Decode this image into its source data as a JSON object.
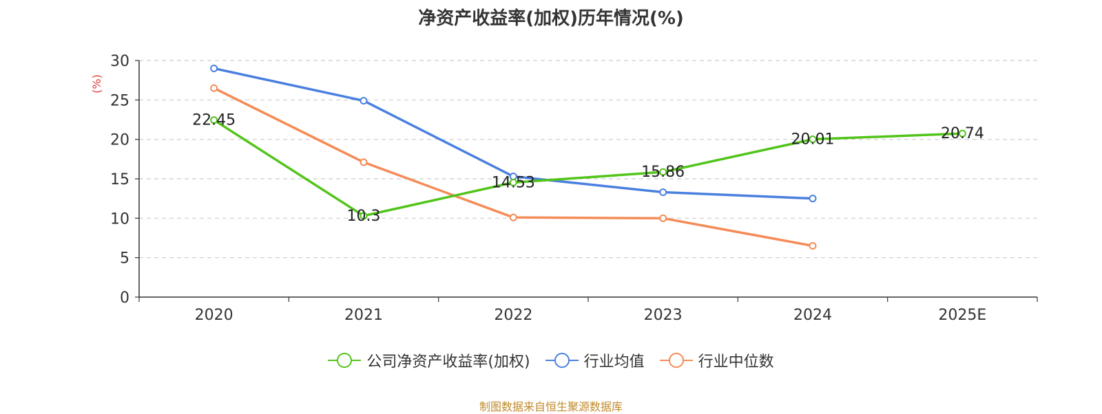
{
  "title": "净资产收益率(加权)历年情况(%)",
  "source_note": "制图数据来自恒生聚源数据库",
  "source_color": "#c08a2a",
  "chart_data": {
    "type": "line",
    "title": "净资产收益率(加权)历年情况(%)",
    "ylabel": "(%)",
    "ylabel_color": "#e53935",
    "ylim": [
      0,
      30
    ],
    "yticks": [
      0,
      5,
      10,
      15,
      20,
      25,
      30
    ],
    "grid": true,
    "legend_position": "bottom",
    "categories": [
      "2020",
      "2021",
      "2022",
      "2023",
      "2024",
      "2025E"
    ],
    "series": [
      {
        "name": "公司净资产收益率(加权)",
        "color": "#52c41a",
        "values": [
          22.45,
          10.3,
          14.53,
          15.86,
          20.01,
          20.74
        ],
        "labels": [
          "22.45",
          "10.3",
          "14.53",
          "15.86",
          "20.01",
          "20.74"
        ]
      },
      {
        "name": "行业均值",
        "color": "#4a7fe0",
        "values": [
          29.0,
          24.9,
          15.3,
          13.3,
          12.5,
          null
        ]
      },
      {
        "name": "行业中位数",
        "color": "#f58b57",
        "values": [
          26.5,
          17.1,
          10.1,
          10.0,
          6.5,
          null
        ]
      }
    ]
  }
}
